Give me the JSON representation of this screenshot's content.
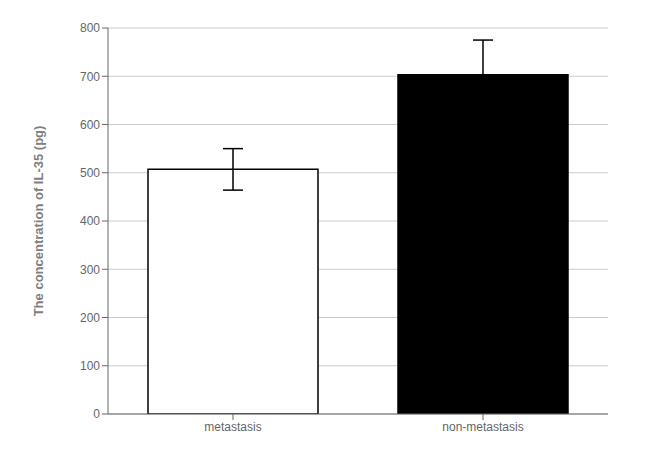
{
  "chart_data": {
    "type": "bar",
    "categories": [
      "metastasis",
      "non-metastasis"
    ],
    "values": [
      507,
      703
    ],
    "errors": [
      43,
      72
    ],
    "colors": [
      "#ffffff",
      "#000000"
    ],
    "ylabel": "The concentration of IL-35 (pg)",
    "ylim": [
      0,
      800
    ],
    "yticks": [
      0,
      100,
      200,
      300,
      400,
      500,
      600,
      700,
      800
    ],
    "grid": true
  }
}
